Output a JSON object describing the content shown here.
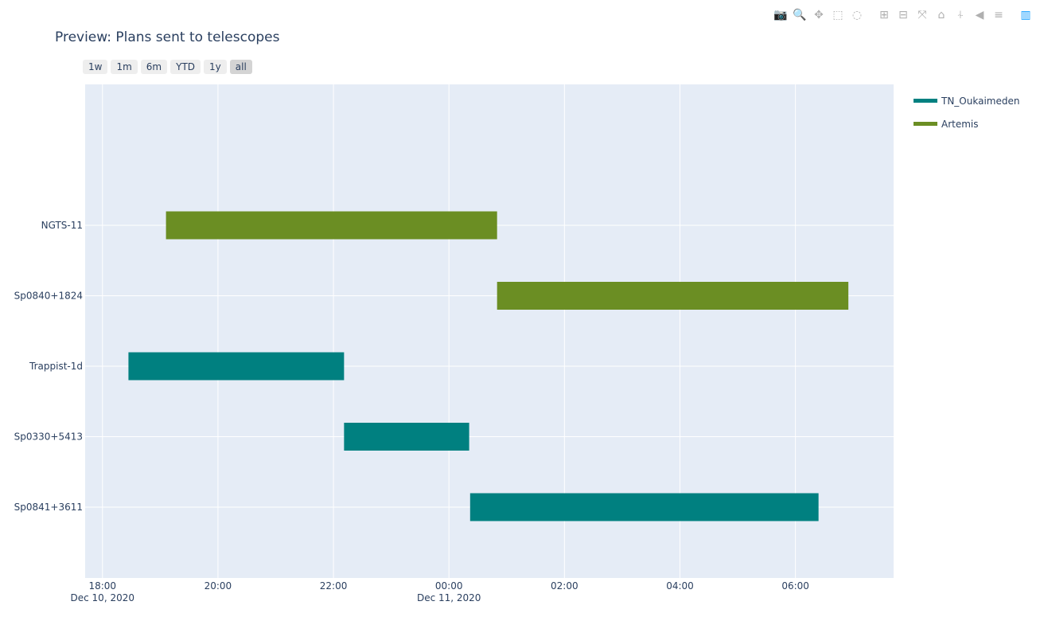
{
  "modebar": {
    "buttons": [
      {
        "name": "camera-icon",
        "glyph": "📷"
      },
      {
        "name": "zoom-icon",
        "glyph": "🔍"
      },
      {
        "name": "pan-icon",
        "glyph": "✥"
      },
      {
        "name": "box-select-icon",
        "glyph": "⬚"
      },
      {
        "name": "lasso-select-icon",
        "glyph": "◌"
      },
      {
        "name": "zoom-in-icon",
        "glyph": "⊞"
      },
      {
        "name": "zoom-out-icon",
        "glyph": "⊟"
      },
      {
        "name": "autoscale-icon",
        "glyph": "⤧"
      },
      {
        "name": "reset-axes-icon",
        "glyph": "⌂"
      },
      {
        "name": "spike-lines-icon",
        "glyph": "⍭"
      },
      {
        "name": "hover-closest-icon",
        "glyph": "◀"
      },
      {
        "name": "hover-compare-icon",
        "glyph": "≡"
      },
      {
        "name": "plotly-logo-icon",
        "glyph": "▥"
      }
    ]
  },
  "range_selector": {
    "buttons": [
      "1w",
      "1m",
      "6m",
      "YTD",
      "1y",
      "all"
    ],
    "active": "all"
  },
  "colors": {
    "TN_Oukaimeden": "#008080",
    "Artemis": "#6b8e23",
    "plot_bg": "#e5ecf6",
    "grid": "#ffffff"
  },
  "chart_data": {
    "type": "bar",
    "orientation": "horizontal-timeline",
    "title": "Preview: Plans sent to telescopes",
    "xlabel": "",
    "ylabel": "",
    "x_range": [
      "2020-12-10 17:42",
      "2020-12-11 07:42"
    ],
    "x_ticks": [
      {
        "value": "2020-12-10 18:00",
        "label": "18:00",
        "sublabel": "Dec 10, 2020"
      },
      {
        "value": "2020-12-10 20:00",
        "label": "20:00",
        "sublabel": ""
      },
      {
        "value": "2020-12-10 22:00",
        "label": "22:00",
        "sublabel": ""
      },
      {
        "value": "2020-12-11 00:00",
        "label": "00:00",
        "sublabel": "Dec 11, 2020"
      },
      {
        "value": "2020-12-11 02:00",
        "label": "02:00",
        "sublabel": ""
      },
      {
        "value": "2020-12-11 04:00",
        "label": "04:00",
        "sublabel": ""
      },
      {
        "value": "2020-12-11 06:00",
        "label": "06:00",
        "sublabel": ""
      }
    ],
    "categories": [
      "NGTS-11",
      "Sp0840+1824",
      "Trappist-1d",
      "Sp0330+5413",
      "Sp0841+3611"
    ],
    "grid": true,
    "legend_position": "top-right",
    "series": [
      {
        "name": "TN_Oukaimeden",
        "tasks": [
          {
            "task": "Trappist-1d",
            "start": "2020-12-10 18:27",
            "end": "2020-12-10 22:11"
          },
          {
            "task": "Sp0330+5413",
            "start": "2020-12-10 22:11",
            "end": "2020-12-11 00:21"
          },
          {
            "task": "Sp0841+3611",
            "start": "2020-12-11 00:22",
            "end": "2020-12-11 06:24"
          }
        ]
      },
      {
        "name": "Artemis",
        "tasks": [
          {
            "task": "NGTS-11",
            "start": "2020-12-10 19:06",
            "end": "2020-12-11 00:50"
          },
          {
            "task": "Sp0840+1824",
            "start": "2020-12-11 00:50",
            "end": "2020-12-11 06:55"
          }
        ]
      }
    ]
  }
}
